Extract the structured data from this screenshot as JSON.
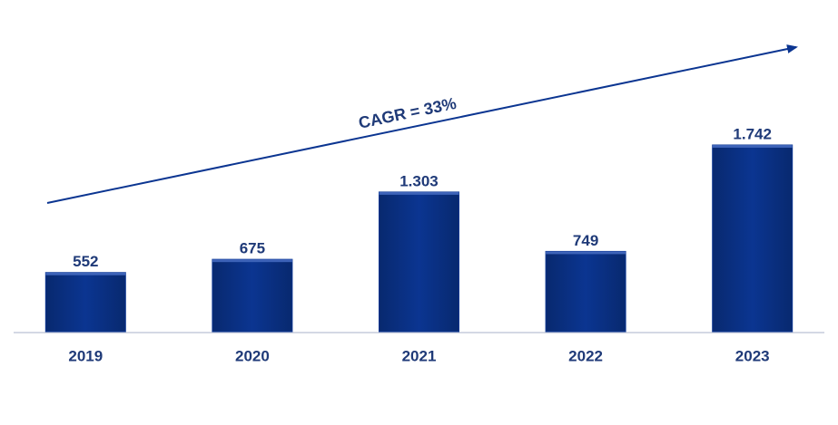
{
  "chart_data": {
    "type": "bar",
    "annotation": "CAGR = 33%",
    "categories": [
      "2019",
      "2020",
      "2021",
      "2022",
      "2023"
    ],
    "values": [
      552,
      675,
      1303,
      749,
      1742
    ],
    "value_labels": [
      "552",
      "675",
      "1.303",
      "749",
      "1.742"
    ],
    "color": "#0b3591"
  }
}
